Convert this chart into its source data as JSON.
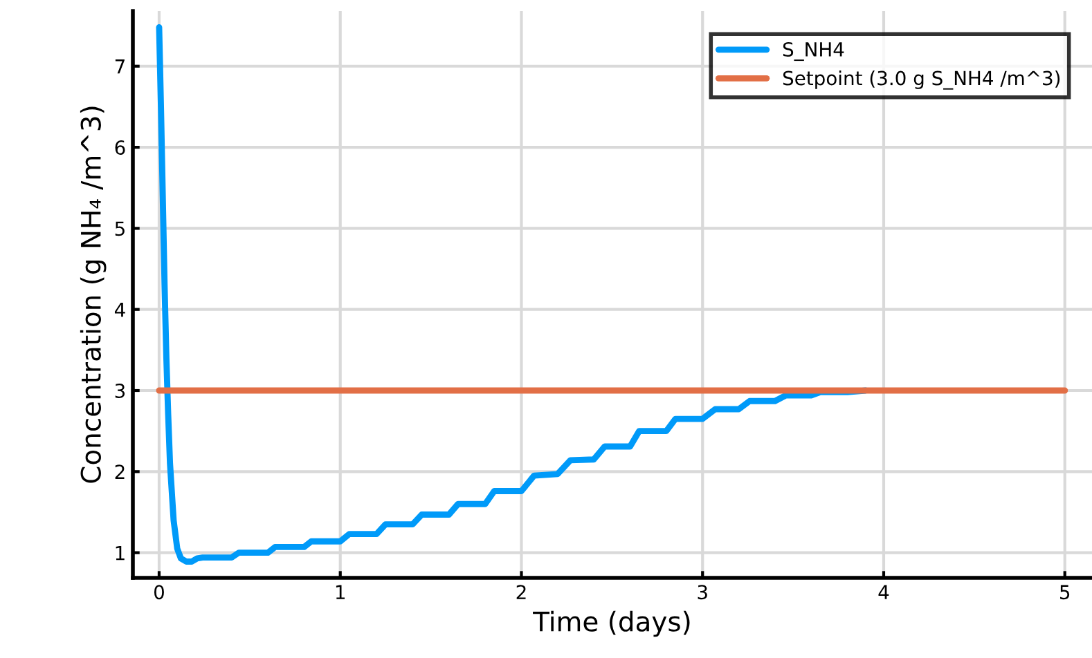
{
  "chart_data": {
    "type": "line",
    "xlabel": "Time (days)",
    "ylabel": "Concentration (g NH₄ /m^3)",
    "xlim": [
      -0.145,
      5.15
    ],
    "ylim": [
      0.69,
      7.68
    ],
    "xticks": [
      0,
      1,
      2,
      3,
      4,
      5
    ],
    "yticks": [
      1,
      2,
      3,
      4,
      5,
      6,
      7
    ],
    "grid": true,
    "legend": "top right",
    "line_style": "solid",
    "series": [
      {
        "name": "S_NH4",
        "color": "#009af9",
        "x": [
          0,
          0.01,
          0.02,
          0.03,
          0.04,
          0.05,
          0.06,
          0.08,
          0.1,
          0.12,
          0.15,
          0.18,
          0.21,
          0.24,
          0.4,
          0.44,
          0.6,
          0.64,
          0.8,
          0.84,
          1.0,
          1.05,
          1.2,
          1.25,
          1.4,
          1.45,
          1.6,
          1.65,
          1.8,
          1.85,
          2.0,
          2.07,
          2.2,
          2.27,
          2.4,
          2.46,
          2.6,
          2.65,
          2.8,
          2.85,
          3.0,
          3.07,
          3.2,
          3.26,
          3.4,
          3.46,
          3.6,
          3.65,
          3.8,
          3.9
        ],
        "values": [
          7.48,
          6.5,
          5.4,
          4.3,
          3.4,
          2.7,
          2.1,
          1.4,
          1.05,
          0.93,
          0.89,
          0.89,
          0.93,
          0.94,
          0.94,
          1.0,
          1.0,
          1.07,
          1.07,
          1.14,
          1.14,
          1.23,
          1.23,
          1.35,
          1.35,
          1.47,
          1.47,
          1.6,
          1.6,
          1.76,
          1.76,
          1.95,
          1.97,
          2.14,
          2.15,
          2.31,
          2.31,
          2.5,
          2.5,
          2.65,
          2.65,
          2.77,
          2.77,
          2.87,
          2.87,
          2.94,
          2.94,
          2.98,
          2.98,
          3.0
        ]
      },
      {
        "name": "Setpoint (3.0 g S_NH4 /m^3)",
        "color": "#e26f46",
        "x": [
          0,
          5
        ],
        "values": [
          3.0,
          3.0
        ]
      }
    ]
  }
}
